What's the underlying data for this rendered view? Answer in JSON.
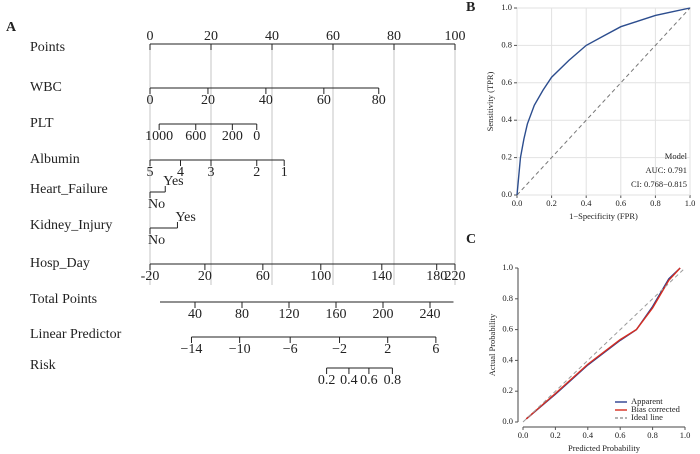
{
  "chart_data": [
    {
      "type": "nomogram",
      "panel_label": "A",
      "points_axis": {
        "name": "Points",
        "xlim": [
          0,
          100
        ],
        "xticks": [
          0,
          20,
          40,
          60,
          80,
          100
        ]
      },
      "variables": [
        {
          "name": "WBC",
          "ticks": [
            0,
            20,
            40,
            60,
            80
          ],
          "points": [
            0,
            19,
            38,
            57,
            75
          ]
        },
        {
          "name": "PLT",
          "ticks": [
            1000,
            600,
            200,
            0
          ],
          "points": [
            3,
            15,
            27,
            35
          ]
        },
        {
          "name": "Albumin",
          "ticks": [
            5,
            4,
            3,
            2,
            1
          ],
          "points": [
            0,
            10,
            20,
            35,
            44
          ]
        },
        {
          "name": "Heart_Failure",
          "ticks": [
            "No",
            "Yes"
          ],
          "points": [
            0,
            5
          ]
        },
        {
          "name": "Kidney_Injury",
          "ticks": [
            "No",
            "Yes"
          ],
          "points": [
            0,
            9
          ]
        },
        {
          "name": "Hosp_Day",
          "ticks": [
            -20,
            20,
            60,
            100,
            140,
            180,
            220
          ],
          "points": [
            0,
            18,
            37,
            56,
            76,
            94,
            100
          ]
        }
      ],
      "total_points": {
        "name": "Total Points",
        "xlim": [
          0,
          260
        ],
        "xticks": [
          40,
          80,
          120,
          160,
          200,
          240
        ]
      },
      "linear_predictor": {
        "name": "Linear Predictor",
        "ticks": [
          {
            "value": -14,
            "label": "−14"
          },
          {
            "value": -10,
            "label": "−10"
          },
          {
            "value": -6,
            "label": "−6"
          },
          {
            "value": -2,
            "label": "−2"
          },
          2,
          6
        ],
        "total_points": [
          37,
          78,
          121,
          163,
          204,
          245
        ]
      },
      "risk": {
        "name": "Risk",
        "ticks": [
          0.2,
          0.4,
          0.6,
          0.8
        ],
        "total_points": [
          152,
          171,
          188,
          208
        ]
      }
    },
    {
      "type": "line",
      "panel_label": "B",
      "x_label": "1−Specificity (FPR)",
      "y_label": "Sensitivity (TPR)",
      "x": [
        0,
        0.01,
        0.02,
        0.04,
        0.06,
        0.1,
        0.15,
        0.2,
        0.3,
        0.4,
        0.5,
        0.6,
        0.7,
        0.8,
        0.9,
        1
      ],
      "values": [
        0,
        0.1,
        0.2,
        0.3,
        0.38,
        0.48,
        0.56,
        0.63,
        0.72,
        0.8,
        0.85,
        0.9,
        0.93,
        0.96,
        0.98,
        1
      ],
      "color": "#2c4d8e",
      "diagonal": true,
      "grid": true,
      "xlim": [
        0,
        1
      ],
      "ylim": [
        0,
        1
      ],
      "xticks": [
        {
          "value": 0,
          "label": "0.0"
        },
        0.2,
        0.4,
        0.6,
        0.8,
        {
          "value": 1,
          "label": "1.0"
        }
      ],
      "yticks": [
        {
          "value": 0,
          "label": "0.0"
        },
        0.2,
        0.4,
        0.6,
        0.8,
        {
          "value": 1,
          "label": "1.0"
        }
      ],
      "annotations": [
        "Model",
        "AUC: 0.791",
        "CI: 0.768−0.815"
      ]
    },
    {
      "type": "line",
      "panel_label": "C",
      "x_label": "Predicted Probability",
      "y_label": "Actual Probability",
      "legend": "bottom-right",
      "grid": false,
      "xlim": [
        0,
        1
      ],
      "ylim": [
        0,
        1
      ],
      "xticks": [
        {
          "value": 0,
          "label": "0.0"
        },
        0.2,
        0.4,
        0.6,
        0.8,
        {
          "value": 1,
          "label": "1.0"
        }
      ],
      "yticks": [
        {
          "value": 0,
          "label": "0.0"
        },
        0.2,
        0.4,
        0.6,
        0.8,
        {
          "value": 1,
          "label": "1.0"
        }
      ],
      "series": [
        {
          "name": "Apparent",
          "color": "#2c3e8e",
          "x": [
            0.02,
            0.2,
            0.4,
            0.5,
            0.6,
            0.7,
            0.8,
            0.9,
            0.97
          ],
          "values": [
            0.02,
            0.18,
            0.37,
            0.45,
            0.53,
            0.6,
            0.75,
            0.93,
            1.0
          ]
        },
        {
          "name": "Bias corrected",
          "color": "#d62d20",
          "x": [
            0.02,
            0.2,
            0.4,
            0.5,
            0.6,
            0.7,
            0.8,
            0.9,
            0.97
          ],
          "values": [
            0.02,
            0.185,
            0.375,
            0.455,
            0.535,
            0.6,
            0.74,
            0.92,
            1.0
          ]
        },
        {
          "name": "Ideal line",
          "color": "#9a9a9a",
          "dash": true,
          "x": [
            0,
            1
          ],
          "values": [
            0,
            1
          ]
        }
      ]
    }
  ]
}
